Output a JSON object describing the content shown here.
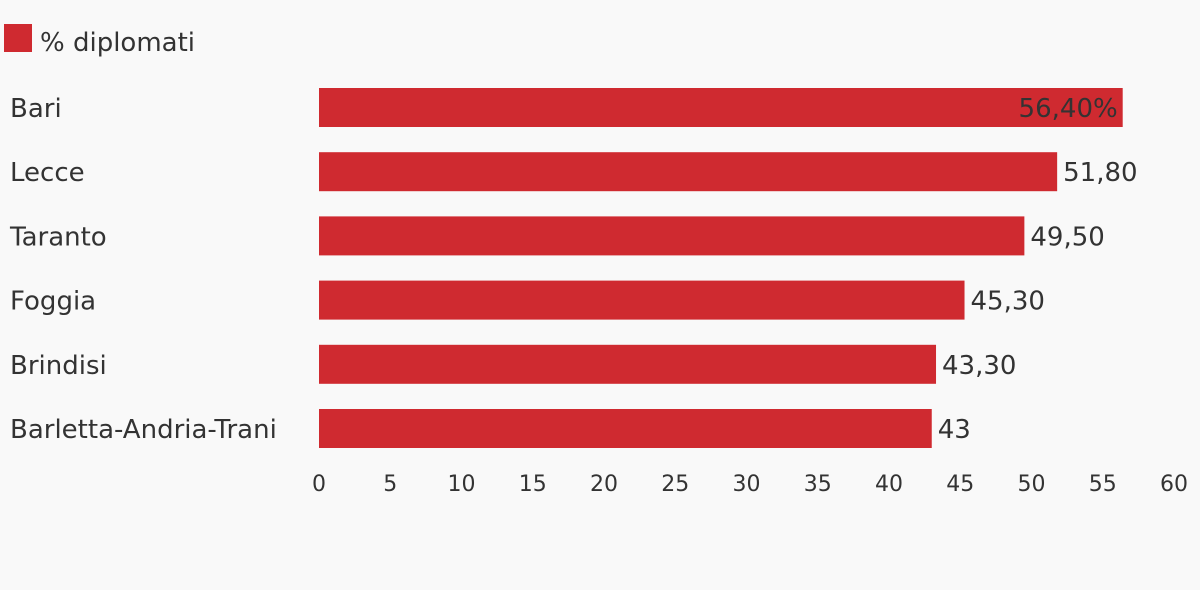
{
  "chart_data": {
    "type": "bar",
    "orientation": "horizontal",
    "title": "",
    "xlabel": "",
    "ylabel": "",
    "categories": [
      "Bari",
      "Lecce",
      "Taranto",
      "Foggia",
      "Brindisi",
      "Barletta-Andria-Trani"
    ],
    "series": [
      {
        "name": "% diplomati",
        "color": "#cf2a30",
        "values": [
          56.4,
          51.8,
          49.5,
          45.3,
          43.3,
          43
        ],
        "value_labels": [
          "56,40%",
          "51,80",
          "49,50",
          "45,30",
          "43,30",
          "43"
        ]
      }
    ],
    "xlim": [
      0,
      60
    ],
    "x_ticks": [
      "0",
      "5",
      "10",
      "15",
      "20",
      "25",
      "30",
      "35",
      "40",
      "45",
      "50",
      "55",
      "60"
    ],
    "grid": false,
    "legend_position": "top-left"
  }
}
